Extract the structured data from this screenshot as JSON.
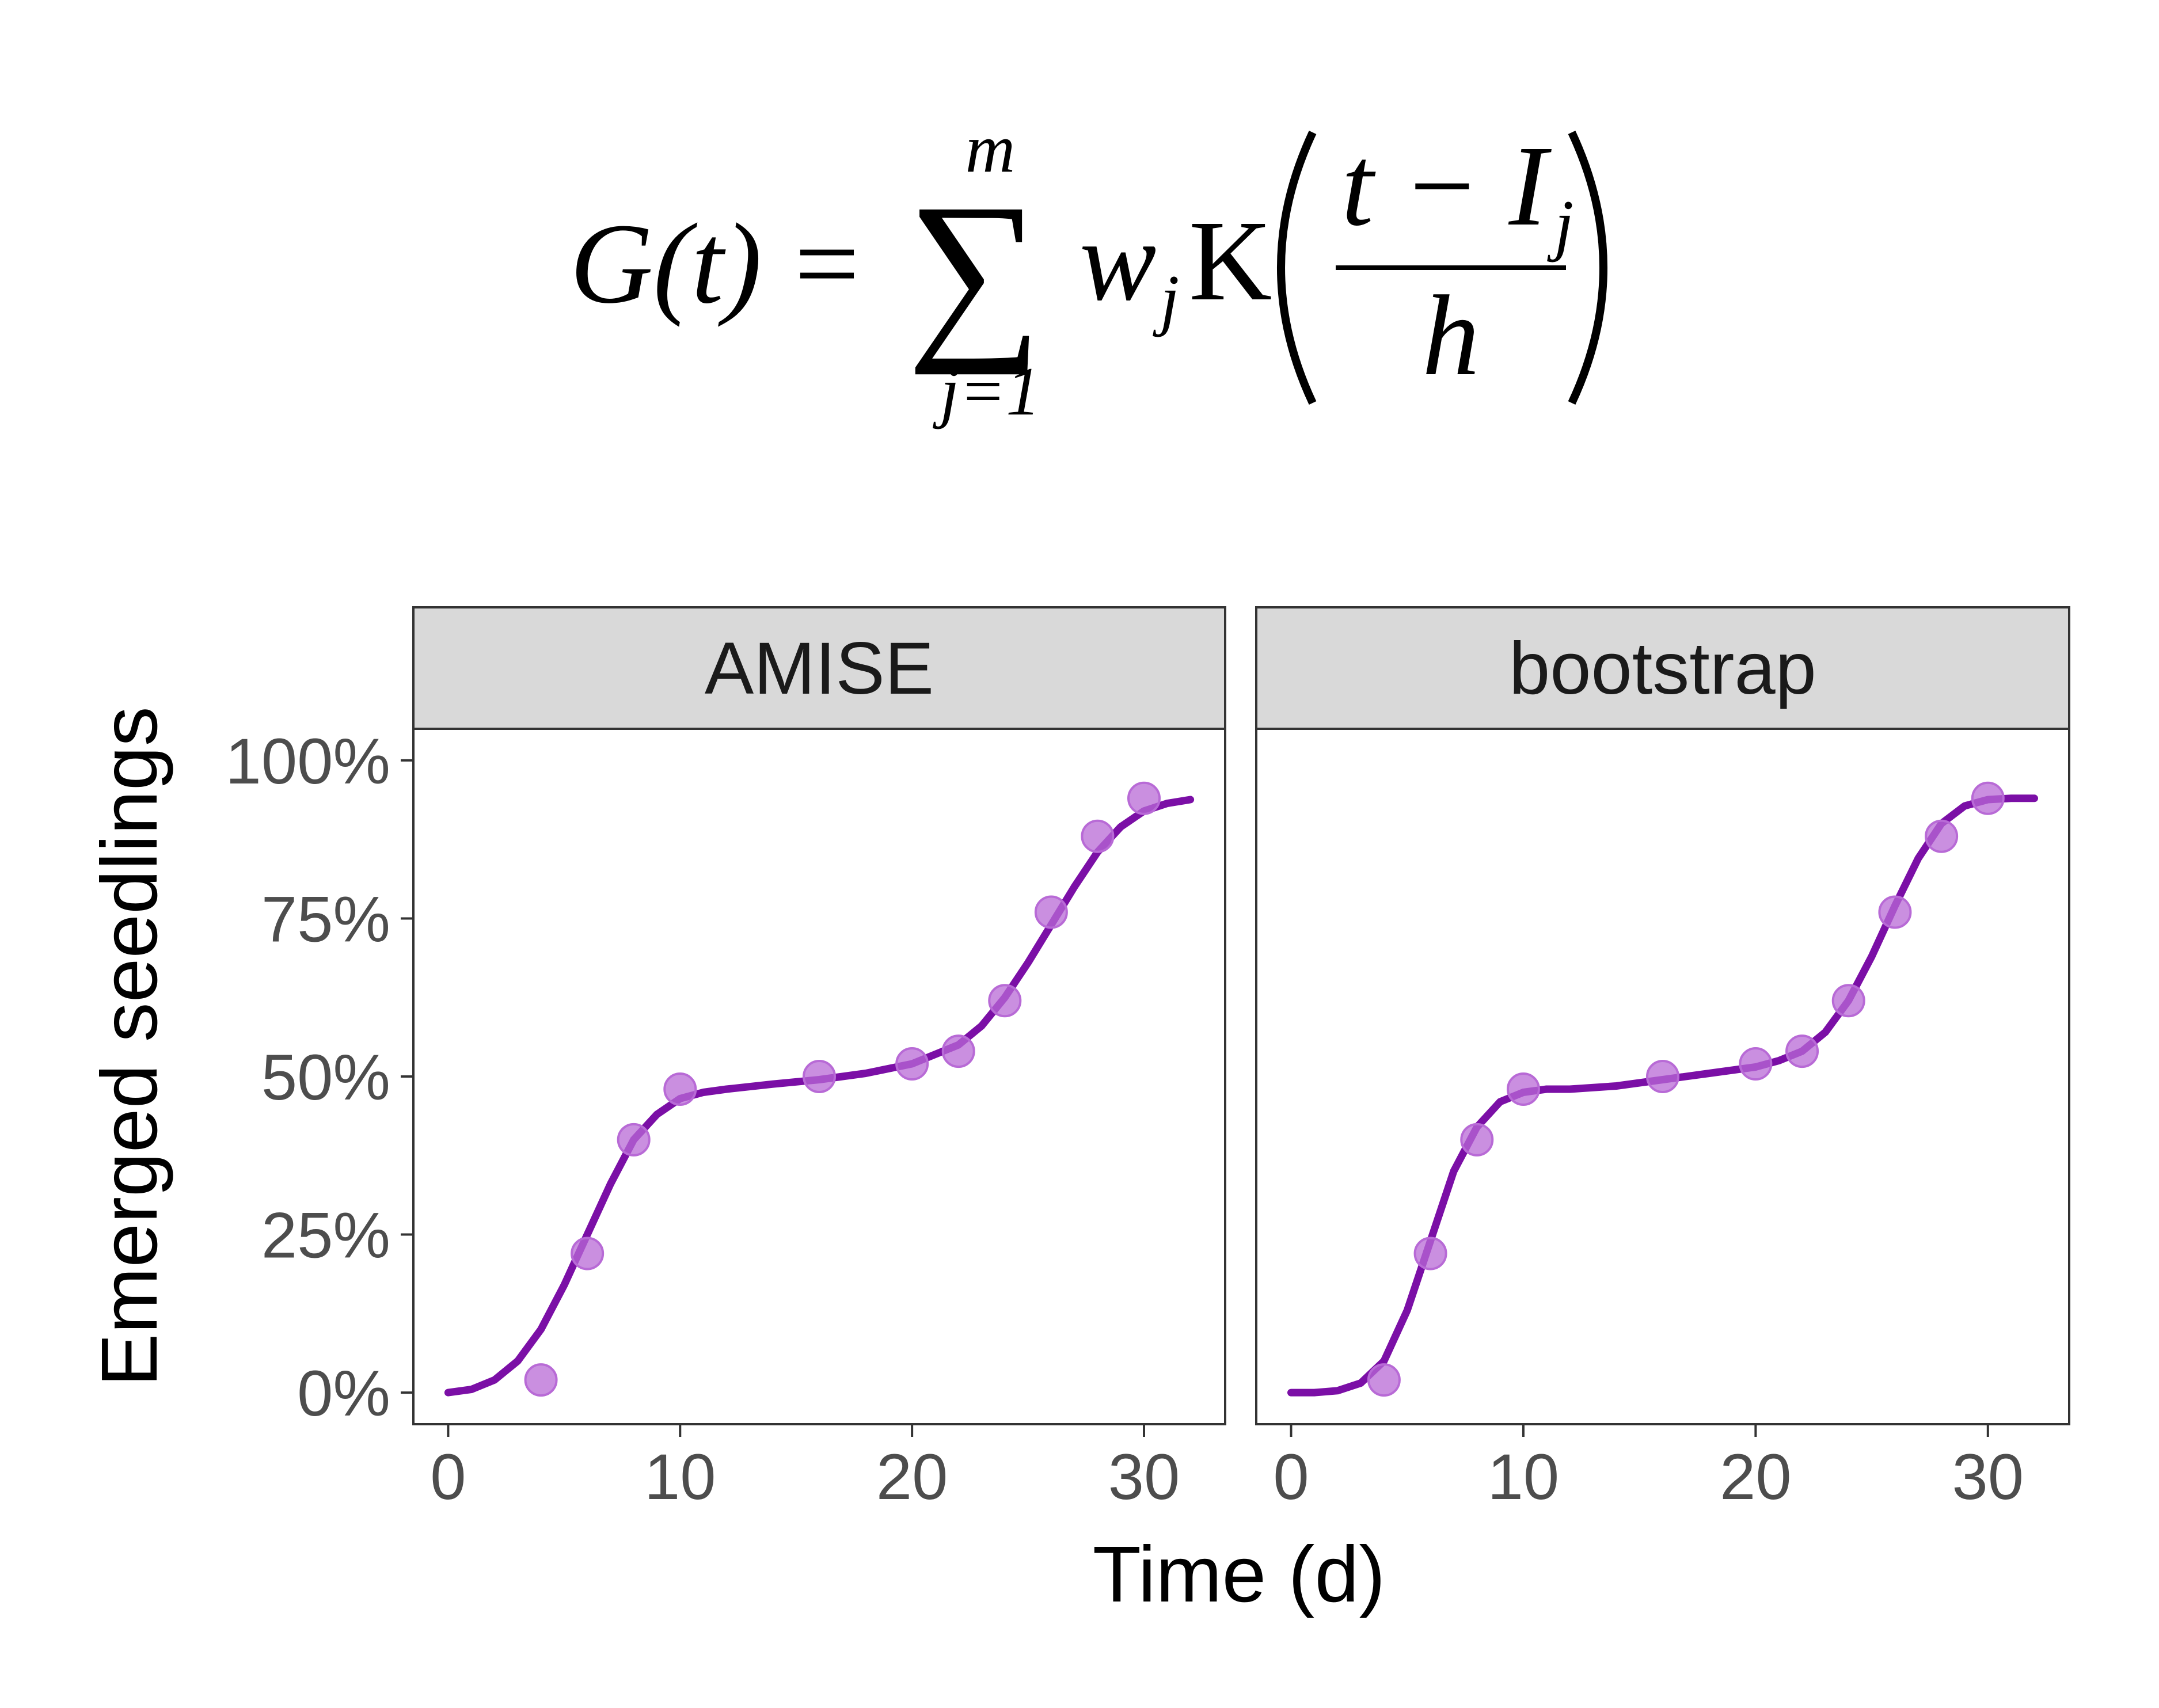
{
  "formula": {
    "lhs": "G(t)",
    "equals": "=",
    "sum_upper": "m",
    "sum_lower": "j=1",
    "weight": "w",
    "weight_sub": "j",
    "kernel": "K",
    "numerator": "t − I",
    "numerator_sub": "j",
    "denominator": "h"
  },
  "colors": {
    "line": "#7b0fa6",
    "points": "#b86ad6",
    "strip_fill": "#d9d9d9",
    "panel_border": "#333333"
  },
  "chart_data": {
    "type": "line",
    "facets": [
      "AMISE",
      "bootstrap"
    ],
    "xlabel": "Time (d)",
    "ylabel": "Emerged seedlings",
    "xlim": [
      -1.5,
      33.5
    ],
    "ylim": [
      -0.05,
      1.05
    ],
    "x_ticks": [
      0,
      10,
      20,
      30
    ],
    "x_tick_labels": [
      "0",
      "10",
      "20",
      "30"
    ],
    "y_ticks": [
      0,
      0.25,
      0.5,
      0.75,
      1.0
    ],
    "y_tick_labels": [
      "0%",
      "25%",
      "50%",
      "75%",
      "100%"
    ],
    "grid": false,
    "points": {
      "x": [
        4,
        6,
        8,
        10,
        16,
        20,
        22,
        24,
        26,
        28,
        30
      ],
      "y": [
        0.02,
        0.22,
        0.4,
        0.48,
        0.5,
        0.52,
        0.54,
        0.62,
        0.76,
        0.88,
        0.94
      ]
    },
    "curves": [
      {
        "facet": "AMISE",
        "x": [
          0,
          1,
          2,
          3,
          4,
          5,
          6,
          7,
          8,
          9,
          10,
          11,
          12,
          14,
          16,
          18,
          20,
          22,
          23,
          24,
          25,
          26,
          27,
          28,
          29,
          30,
          31,
          32
        ],
        "y": [
          0.0,
          0.005,
          0.02,
          0.05,
          0.1,
          0.17,
          0.25,
          0.33,
          0.4,
          0.44,
          0.465,
          0.475,
          0.48,
          0.488,
          0.495,
          0.505,
          0.52,
          0.55,
          0.58,
          0.625,
          0.68,
          0.74,
          0.8,
          0.855,
          0.895,
          0.92,
          0.932,
          0.938
        ]
      },
      {
        "facet": "bootstrap",
        "x": [
          0,
          1,
          2,
          3,
          4,
          5,
          6,
          7,
          8,
          9,
          10,
          11,
          12,
          14,
          16,
          18,
          20,
          21,
          22,
          23,
          24,
          25,
          26,
          27,
          28,
          29,
          30,
          31,
          32
        ],
        "y": [
          0.0,
          0.0,
          0.003,
          0.015,
          0.05,
          0.13,
          0.24,
          0.35,
          0.42,
          0.46,
          0.475,
          0.48,
          0.48,
          0.485,
          0.495,
          0.505,
          0.515,
          0.525,
          0.54,
          0.57,
          0.62,
          0.69,
          0.77,
          0.845,
          0.9,
          0.928,
          0.938,
          0.94,
          0.94
        ]
      }
    ]
  }
}
